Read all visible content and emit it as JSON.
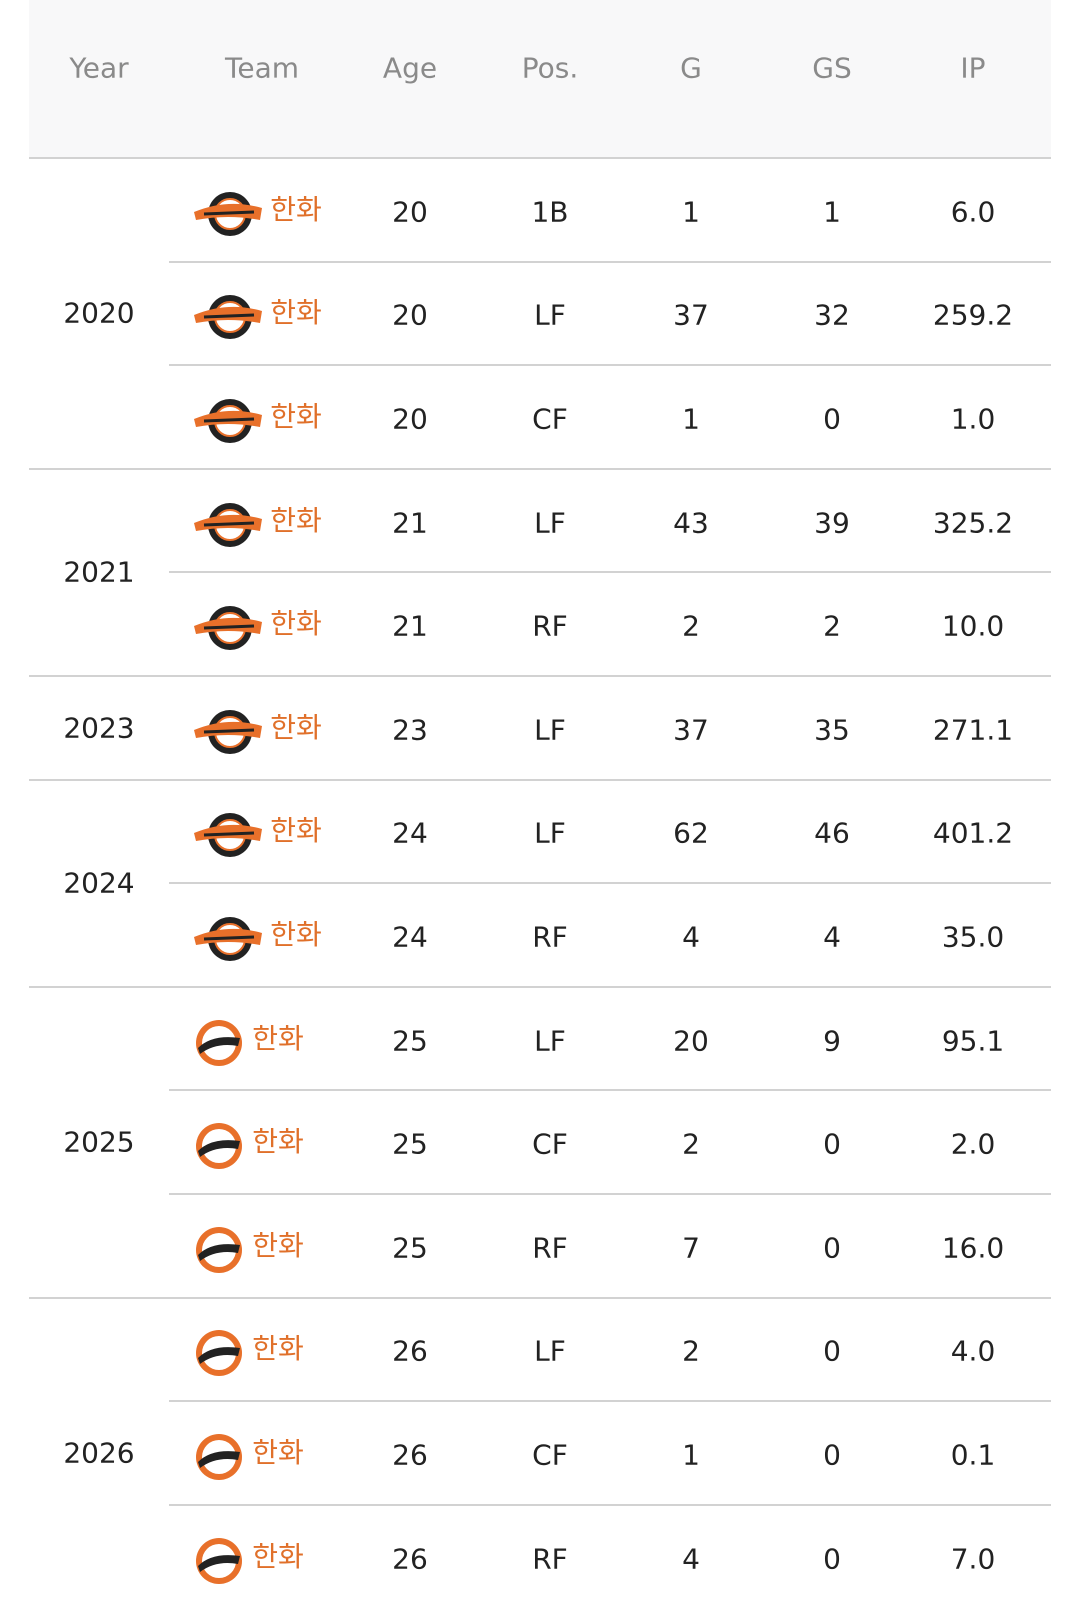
{
  "header": {
    "columns": [
      "Year",
      "Team",
      "Age",
      "Pos.",
      "G",
      "GS",
      "IP"
    ]
  },
  "groups": [
    {
      "year": "2020",
      "rows": [
        {
          "team": "한화",
          "age": "20",
          "pos": "1B",
          "g": "1",
          "gs": "1",
          "ip": "6.0"
        },
        {
          "team": "한화",
          "age": "20",
          "pos": "LF",
          "g": "37",
          "gs": "32",
          "ip": "259.2"
        },
        {
          "team": "한화",
          "age": "20",
          "pos": "CF",
          "g": "1",
          "gs": "0",
          "ip": "1.0"
        }
      ]
    },
    {
      "year": "2021",
      "rows": [
        {
          "team": "한화",
          "age": "21",
          "pos": "LF",
          "g": "43",
          "gs": "39",
          "ip": "325.2"
        },
        {
          "team": "한화",
          "age": "21",
          "pos": "RF",
          "g": "2",
          "gs": "2",
          "ip": "10.0"
        }
      ]
    },
    {
      "year": "2023",
      "rows": [
        {
          "team": "한화",
          "age": "23",
          "pos": "LF",
          "g": "37",
          "gs": "35",
          "ip": "271.1"
        }
      ]
    },
    {
      "year": "2024",
      "rows": [
        {
          "team": "한화",
          "age": "24",
          "pos": "LF",
          "g": "62",
          "gs": "46",
          "ip": "401.2"
        },
        {
          "team": "한화",
          "age": "24",
          "pos": "RF",
          "g": "4",
          "gs": "4",
          "ip": "35.0"
        }
      ]
    },
    {
      "year": "2025",
      "rows": [
        {
          "team": "한화",
          "age": "25",
          "pos": "LF",
          "g": "20",
          "gs": "9",
          "ip": "95.1"
        },
        {
          "team": "한화",
          "age": "25",
          "pos": "CF",
          "g": "2",
          "gs": "0",
          "ip": "2.0"
        },
        {
          "team": "한화",
          "age": "25",
          "pos": "RF",
          "g": "7",
          "gs": "0",
          "ip": "16.0"
        }
      ]
    },
    {
      "year": "2026",
      "rows": [
        {
          "team": "한화",
          "age": "26",
          "pos": "LF",
          "g": "2",
          "gs": "0",
          "ip": "4.0"
        },
        {
          "team": "한화",
          "age": "26",
          "pos": "CF",
          "g": "1",
          "gs": "0",
          "ip": "0.1"
        },
        {
          "team": "한화",
          "age": "26",
          "pos": "RF",
          "g": "4",
          "gs": "0",
          "ip": "7.0"
        }
      ]
    }
  ]
}
